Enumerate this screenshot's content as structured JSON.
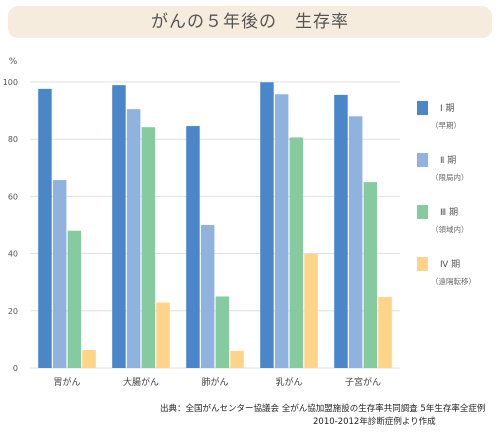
{
  "title": "がんの５年後の　生存率",
  "chart_data": {
    "type": "bar",
    "y_unit": "%",
    "ylim": [
      0,
      100
    ],
    "yticks": [
      0,
      20,
      40,
      60,
      80,
      100
    ],
    "grid": true,
    "legend_position": "right",
    "categories": [
      "胃がん",
      "大腸がん",
      "肺がん",
      "乳がん",
      "子宮がん"
    ],
    "series": [
      {
        "name": "Ⅰ 期",
        "sub": "（早期）",
        "color": "#4a86c8",
        "values": [
          97.6,
          98.9,
          84.6,
          99.9,
          95.5
        ]
      },
      {
        "name": "Ⅱ 期",
        "sub": "（限局内）",
        "color": "#8fb2de",
        "values": [
          65.7,
          90.5,
          50.0,
          95.7,
          88.0
        ]
      },
      {
        "name": "Ⅲ 期",
        "sub": "（領域内）",
        "color": "#86cba0",
        "values": [
          48.0,
          84.2,
          25.0,
          80.6,
          65.0
        ]
      },
      {
        "name": "Ⅳ 期",
        "sub": "（遠隔転移）",
        "color": "#fdd488",
        "values": [
          6.3,
          22.9,
          6.0,
          39.9,
          24.8
        ]
      }
    ]
  },
  "source": {
    "line1": "出典：全国がんセンター協議会 全がん協加盟施設の生存率共同調査 5年生存率全症例",
    "line2": "2010-2012年診断症例より作成"
  }
}
